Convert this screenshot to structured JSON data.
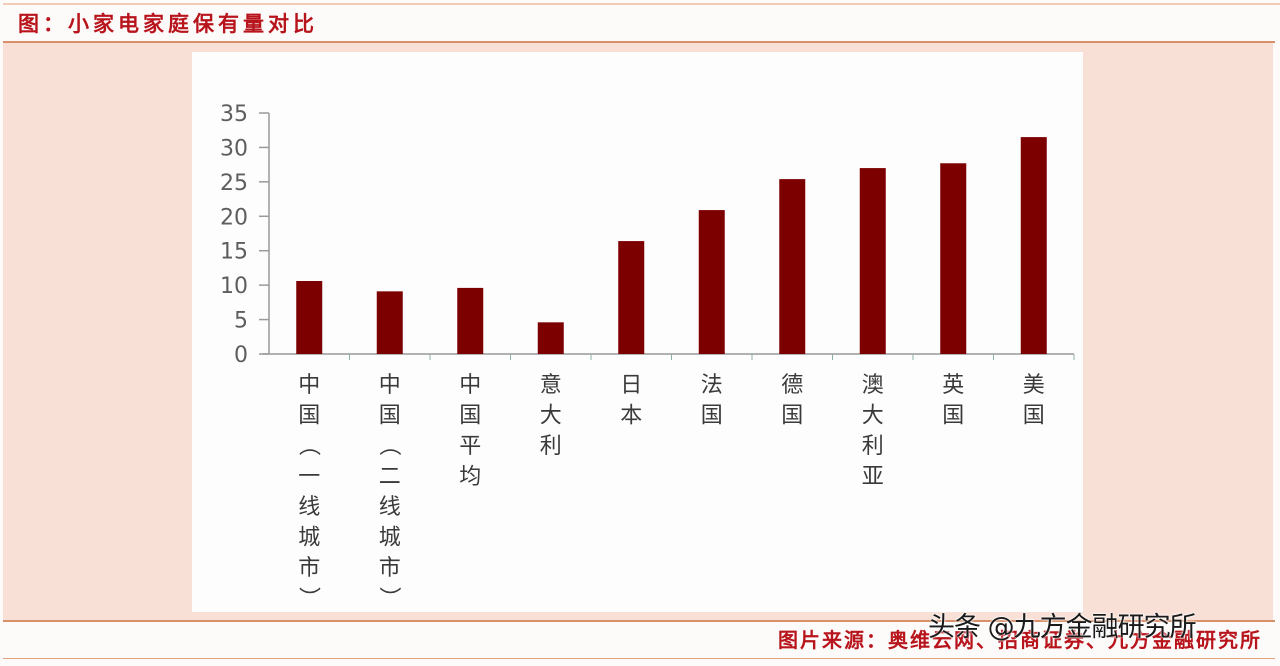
{
  "header": {
    "title": "图：小家电家庭保有量对比"
  },
  "footer": {
    "source": "图片来源：奥维云网、招商证券、九方金融研究所",
    "watermark": "头条 @九方金融研究所"
  },
  "colors": {
    "bar": "#7d0000",
    "title": "#b8141c",
    "panel": "#f9e0d7",
    "axis": "#9a9a9a",
    "tick_label": "#5e5e5e",
    "category_label": "#3a3a3a"
  },
  "chart_data": {
    "type": "bar",
    "title": "小家电家庭保有量对比",
    "xlabel": "",
    "ylabel": "",
    "categories": [
      "中国（一线城市）",
      "中国（二线城市）",
      "中国平均",
      "意大利",
      "日本",
      "法国",
      "德国",
      "澳大利亚",
      "英国",
      "美国"
    ],
    "values": [
      10.6,
      9.1,
      9.6,
      4.6,
      16.4,
      20.9,
      25.4,
      27.0,
      27.7,
      31.5
    ],
    "ylim": [
      0,
      35
    ],
    "yticks": [
      0,
      5,
      10,
      15,
      20,
      25,
      30,
      35
    ],
    "grid": false,
    "legend": null
  }
}
